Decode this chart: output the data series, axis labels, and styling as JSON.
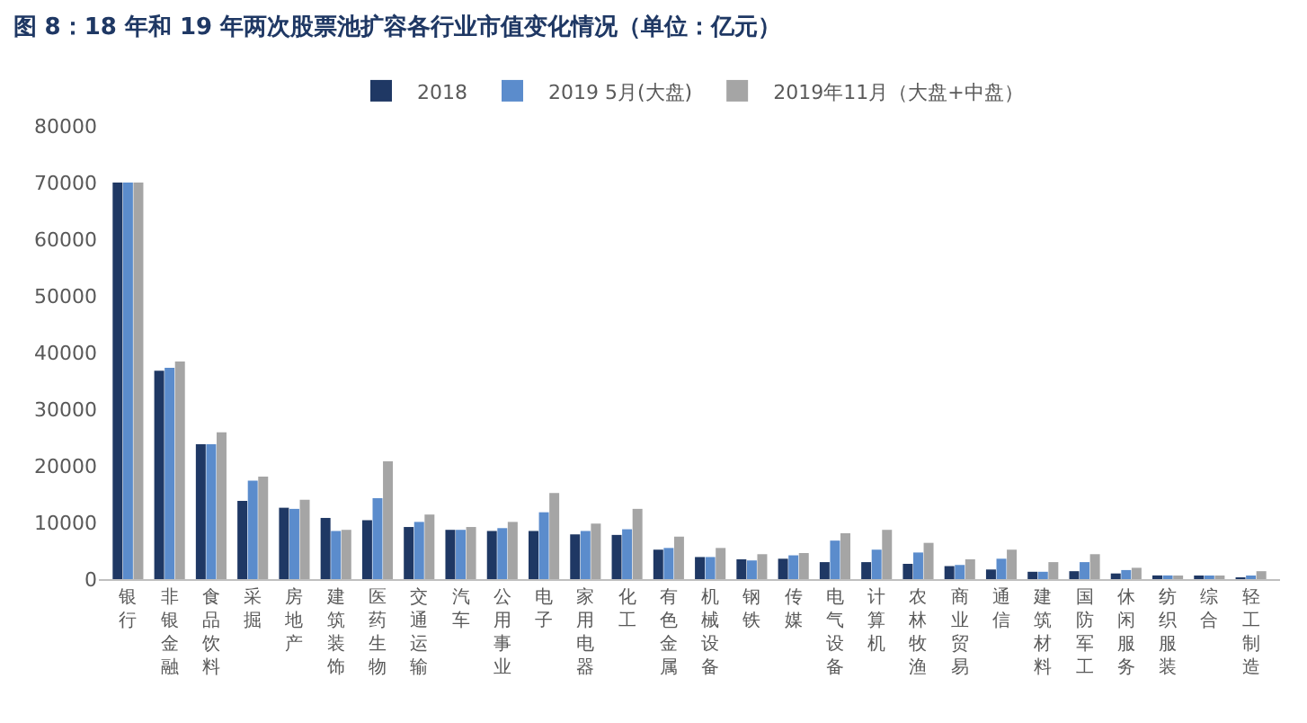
{
  "chart_data": {
    "type": "bar",
    "title": "图 8：18 年和 19 年两次股票池扩容各行业市值变化情况（单位：亿元）",
    "categories": [
      "银行",
      "非银金融",
      "食品饮料",
      "采掘",
      "房地产",
      "建筑装饰",
      "医药生物",
      "交通运输",
      "汽车",
      "公用事业",
      "电子",
      "家用电器",
      "化工",
      "有色金属",
      "机械设备",
      "钢铁",
      "传媒",
      "电气设备",
      "计算机",
      "农林牧渔",
      "商业贸易",
      "通信",
      "建筑材料",
      "国防军工",
      "休闲服务",
      "纺织服装",
      "综合",
      "轻工制造"
    ],
    "series": [
      {
        "name": "2018",
        "color": "#1f3864",
        "values": [
          70000,
          36800,
          23800,
          13800,
          12600,
          10800,
          10400,
          9200,
          8700,
          8500,
          8500,
          7900,
          7800,
          5200,
          3900,
          3500,
          3600,
          3000,
          3000,
          2700,
          2300,
          1700,
          1300,
          1400,
          1000,
          650,
          400,
          300
        ]
      },
      {
        "name": "2019 5月(大盘)",
        "color": "#5b8ccc",
        "values": [
          70000,
          37300,
          23800,
          17400,
          12400,
          8500,
          14300,
          10100,
          8700,
          9000,
          11800,
          8500,
          8800,
          5500,
          3900,
          3300,
          4200,
          6800,
          5200,
          4700,
          2500,
          3600,
          1300,
          3000,
          1600,
          650,
          400,
          400
        ]
      },
      {
        "name": "2019年11月（大盘+中盘）",
        "color": "#a5a5a5",
        "values": [
          70000,
          38400,
          25900,
          18100,
          14000,
          8700,
          20800,
          11400,
          9200,
          10100,
          15200,
          9800,
          12400,
          7500,
          5500,
          4400,
          4600,
          8100,
          8700,
          6400,
          3500,
          5200,
          3000,
          4400,
          2000,
          500,
          400,
          1400
        ]
      }
    ],
    "ylim": [
      0,
      80000
    ],
    "yticks": [
      0,
      10000,
      20000,
      30000,
      40000,
      50000,
      60000,
      70000,
      80000
    ],
    "grid": false,
    "legend": "top"
  }
}
